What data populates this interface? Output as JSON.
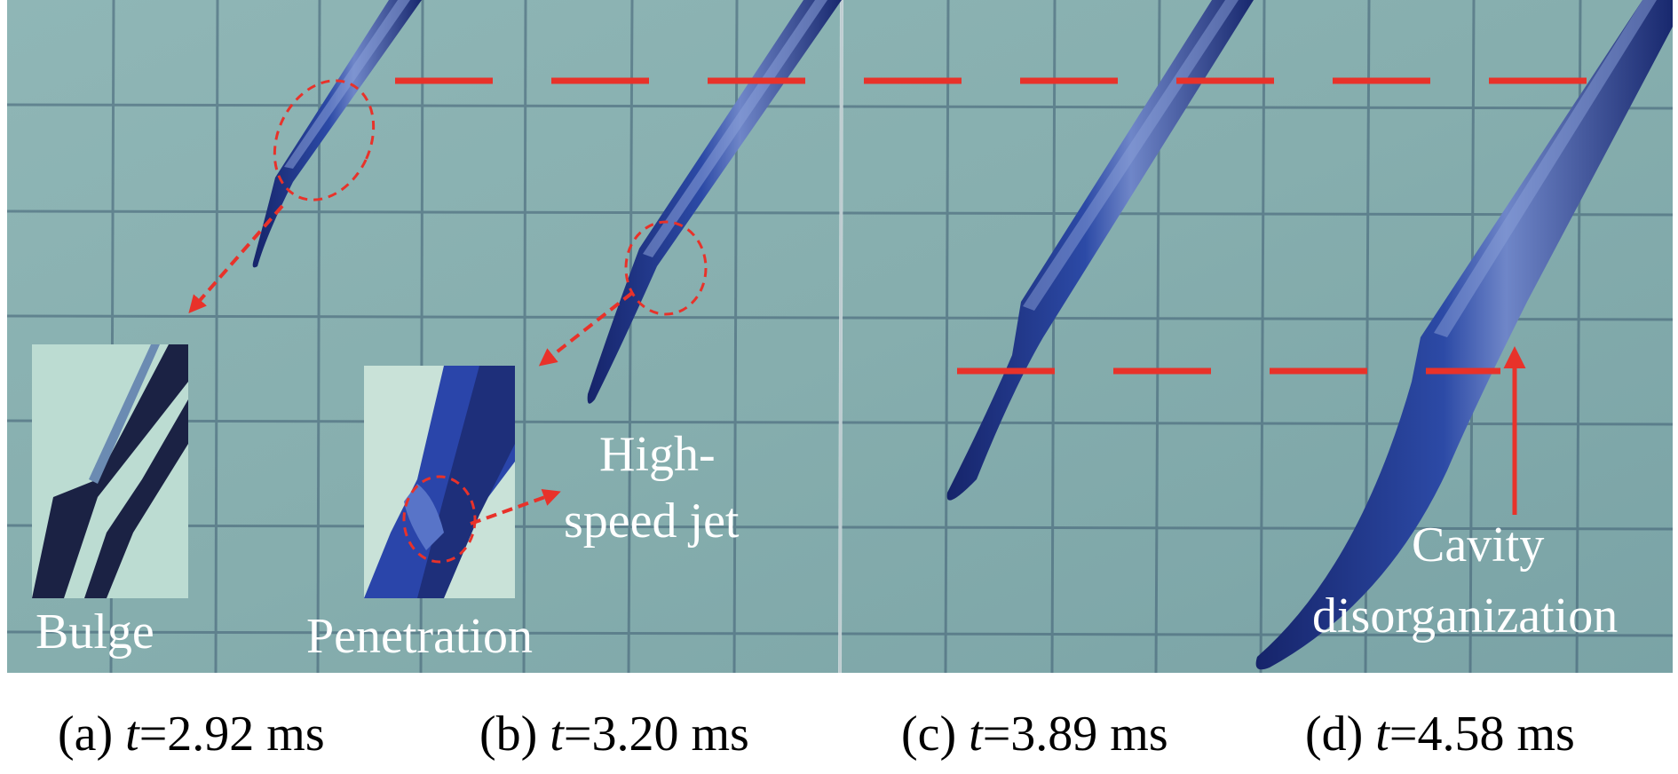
{
  "annotations": {
    "bulge": "Bulge",
    "penetration": "Penetration",
    "high_speed_jet_line1": "High-",
    "high_speed_jet_line2": "speed jet",
    "cavity_line1": "Cavity",
    "cavity_line2": "disorganization"
  },
  "captions": [
    {
      "label": "(a) ",
      "var": "t",
      "value": "=2.92 ms"
    },
    {
      "label": "(b) ",
      "var": "t",
      "value": "=3.20 ms"
    },
    {
      "label": "(c) ",
      "var": "t",
      "value": "=3.89 ms"
    },
    {
      "label": "(d) ",
      "var": "t",
      "value": "=4.58 ms"
    }
  ],
  "colors": {
    "water_background": "#86aeae",
    "grid_lines": "#3f5d73",
    "cavity_dark": "#1e2f7a",
    "cavity_mid": "#3a5ab8",
    "annotation_red": "#e8322a",
    "annotation_text": "#ffffff",
    "caption_text": "#000000"
  }
}
